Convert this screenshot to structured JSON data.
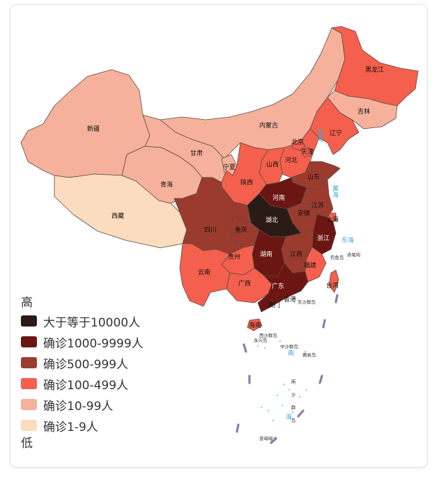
{
  "legend": {
    "high": "高",
    "low": "低",
    "items": [
      {
        "label": "大于等于10000人",
        "color": "#2b1b17"
      },
      {
        "label": "确诊1000-9999人",
        "color": "#6b1612"
      },
      {
        "label": "确诊500-999人",
        "color": "#9b3b2e"
      },
      {
        "label": "确诊100-499人",
        "color": "#f4604d"
      },
      {
        "label": "确诊10-99人",
        "color": "#f6b19c"
      },
      {
        "label": "确诊1-9人",
        "color": "#fcdcbe"
      }
    ]
  },
  "provinces": {
    "xinjiang": "新疆",
    "xizang": "西藏",
    "qinghai": "青海",
    "gansu": "甘肃",
    "neimenggu": "内蒙古",
    "heilongjiang": "黑龙江",
    "jilin": "吉林",
    "liaoning": "辽宁",
    "beijing": "北京",
    "tianjin": "天津",
    "hebei": "河北",
    "shanxi": "山西",
    "ningxia": "宁夏",
    "shaanxi": "陕西",
    "shandong": "山东",
    "henan": "河南",
    "jiangsu": "江苏",
    "anhui": "安徽",
    "shanghai": "上海",
    "hubei": "湖北",
    "sichuan": "四川",
    "chongqing": "重庆",
    "zhejiang": "浙江",
    "hunan": "湖南",
    "jiangxi": "江西",
    "guizhou": "贵州",
    "yunnan": "云南",
    "guangxi": "广西",
    "fujian": "福建",
    "guangdong": "广东",
    "taiwan": "台湾",
    "xianggang": "香港",
    "aomen": "澳门",
    "hainan": "海南"
  },
  "seas": {
    "huanghai": "黄海",
    "donghai": "东海",
    "nanhai": "南海",
    "bohai": "渤海"
  },
  "islands": {
    "diaoyu": "钓鱼岛",
    "chiwei": "赤尾屿",
    "dongsha": "东沙群岛",
    "xisha": "西沙群岛",
    "yongxing": "永兴岛",
    "huangyan": "黄岩岛",
    "zhongsha": "中沙群岛",
    "zengmu": "曾母暗沙",
    "nansha": "南沙群岛"
  }
}
